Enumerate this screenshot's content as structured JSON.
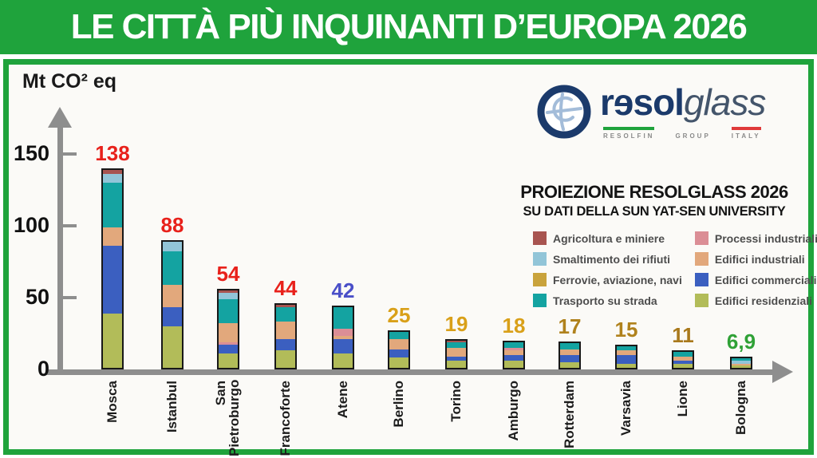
{
  "title": "LE CITTÀ PIÙ INQUINANTI D’EUROPA 2026",
  "theme": {
    "title_bg": "#1fa33c",
    "frame_border": "#1fa33c",
    "axis_color": "#8e8e8e"
  },
  "logo": {
    "icon": "resolglass-logo-icon",
    "brand_bold": "rɘsol",
    "brand_light": "glass",
    "sub_items": [
      {
        "label": "RESOLFIN",
        "bar_color": "#1fa33c"
      },
      {
        "label": "GROUP",
        "bar_color": ""
      },
      {
        "label": "ITALY",
        "bar_color": "#e03a3a"
      }
    ]
  },
  "projection": {
    "line1": "PROIEZIONE RESOLGLASS 2026",
    "line2": "SU DATI DELLA SUN YAT-SEN UNIVERSITY"
  },
  "chart_data": {
    "type": "bar",
    "stacked": true,
    "title": "LE CITTÀ PIÙ INQUINANTI D’EUROPA 2026",
    "ylabel": "Mt CO² eq",
    "xlabel": "",
    "ylim": [
      0,
      150
    ],
    "yticks": [
      "150",
      "100",
      "50",
      "0"
    ],
    "grid": false,
    "legend_position": "right",
    "segment_colors": {
      "agr": "#a85450",
      "rif": "#92c5d8",
      "fer": "#c9a33c",
      "str": "#14a3a1",
      "pro": "#db8e96",
      "ind": "#e2a87c",
      "com": "#3b5fc0",
      "res": "#b2bc59"
    },
    "legend_columns": [
      [
        {
          "key": "agr",
          "label": "Agricoltura e miniere"
        },
        {
          "key": "rif",
          "label": "Smaltimento dei rifiuti"
        },
        {
          "key": "fer",
          "label": "Ferrovie, aviazione, navi"
        },
        {
          "key": "str",
          "label": "Trasporto su strada"
        }
      ],
      [
        {
          "key": "pro",
          "label": "Processi  industriali"
        },
        {
          "key": "ind",
          "label": "Edifici  industriali"
        },
        {
          "key": "com",
          "label": "Edifici  commerciali"
        },
        {
          "key": "res",
          "label": "Edifici  residenziali"
        }
      ]
    ],
    "cities": [
      {
        "name": "Mosca",
        "total_label": "138",
        "total_value": 138,
        "label_color": "#e8211b",
        "segments": [
          {
            "k": "res",
            "v": 38
          },
          {
            "k": "com",
            "v": 47
          },
          {
            "k": "ind",
            "v": 13
          },
          {
            "k": "str",
            "v": 31
          },
          {
            "k": "rif",
            "v": 6
          },
          {
            "k": "agr",
            "v": 3
          }
        ]
      },
      {
        "name": "Istanbul",
        "total_label": "88",
        "total_value": 88,
        "label_color": "#e8211b",
        "segments": [
          {
            "k": "res",
            "v": 29
          },
          {
            "k": "com",
            "v": 13
          },
          {
            "k": "ind",
            "v": 16
          },
          {
            "k": "str",
            "v": 23
          },
          {
            "k": "rif",
            "v": 7
          }
        ]
      },
      {
        "name": "San\nPietroburgo",
        "total_label": "54",
        "total_value": 54,
        "label_color": "#e8211b",
        "segments": [
          {
            "k": "res",
            "v": 10
          },
          {
            "k": "com",
            "v": 6
          },
          {
            "k": "pro",
            "v": 2
          },
          {
            "k": "ind",
            "v": 13
          },
          {
            "k": "str",
            "v": 17
          },
          {
            "k": "rif",
            "v": 4
          },
          {
            "k": "agr",
            "v": 2
          }
        ]
      },
      {
        "name": "Francoforte",
        "total_label": "44",
        "total_value": 44,
        "label_color": "#e8211b",
        "segments": [
          {
            "k": "res",
            "v": 12
          },
          {
            "k": "com",
            "v": 8
          },
          {
            "k": "ind",
            "v": 12
          },
          {
            "k": "str",
            "v": 10
          },
          {
            "k": "agr",
            "v": 2
          }
        ]
      },
      {
        "name": "Atene",
        "total_label": "42",
        "total_value": 42,
        "label_color": "#4a4fc8",
        "segments": [
          {
            "k": "res",
            "v": 10
          },
          {
            "k": "com",
            "v": 10
          },
          {
            "k": "ind",
            "v": 2
          },
          {
            "k": "pro",
            "v": 5
          },
          {
            "k": "str",
            "v": 15
          }
        ]
      },
      {
        "name": "Berlino",
        "total_label": "25",
        "total_value": 25,
        "label_color": "#d9a019",
        "segments": [
          {
            "k": "res",
            "v": 7
          },
          {
            "k": "com",
            "v": 6
          },
          {
            "k": "ind",
            "v": 7
          },
          {
            "k": "str",
            "v": 5
          }
        ]
      },
      {
        "name": "Torino",
        "total_label": "19",
        "total_value": 19,
        "label_color": "#d9a019",
        "segments": [
          {
            "k": "res",
            "v": 5
          },
          {
            "k": "com",
            "v": 3
          },
          {
            "k": "ind",
            "v": 6
          },
          {
            "k": "str",
            "v": 4
          },
          {
            "k": "agr",
            "v": 1
          }
        ]
      },
      {
        "name": "Amburgo",
        "total_label": "18",
        "total_value": 18,
        "label_color": "#d9a019",
        "segments": [
          {
            "k": "res",
            "v": 5
          },
          {
            "k": "com",
            "v": 4
          },
          {
            "k": "ind",
            "v": 3
          },
          {
            "k": "pro",
            "v": 2
          },
          {
            "k": "str",
            "v": 4
          }
        ]
      },
      {
        "name": "Rotterdam",
        "total_label": "17",
        "total_value": 17,
        "label_color": "#b0821d",
        "segments": [
          {
            "k": "res",
            "v": 4
          },
          {
            "k": "com",
            "v": 5
          },
          {
            "k": "ind",
            "v": 4
          },
          {
            "k": "str",
            "v": 4
          }
        ]
      },
      {
        "name": "Varsavia",
        "total_label": "15",
        "total_value": 15,
        "label_color": "#b0821d",
        "segments": [
          {
            "k": "res",
            "v": 3
          },
          {
            "k": "com",
            "v": 6
          },
          {
            "k": "ind",
            "v": 3
          },
          {
            "k": "str",
            "v": 3
          }
        ]
      },
      {
        "name": "Lione",
        "total_label": "11",
        "total_value": 11,
        "label_color": "#a9791c",
        "segments": [
          {
            "k": "res",
            "v": 3
          },
          {
            "k": "com",
            "v": 2
          },
          {
            "k": "ind",
            "v": 3
          },
          {
            "k": "str",
            "v": 3
          }
        ]
      },
      {
        "name": "Bologna",
        "total_label": "6,9",
        "total_value": 6.9,
        "label_color": "#2fa136",
        "segments": [
          {
            "k": "res",
            "v": 1.5
          },
          {
            "k": "ind",
            "v": 1.4
          },
          {
            "k": "rif",
            "v": 2
          },
          {
            "k": "str",
            "v": 2
          }
        ]
      }
    ]
  }
}
